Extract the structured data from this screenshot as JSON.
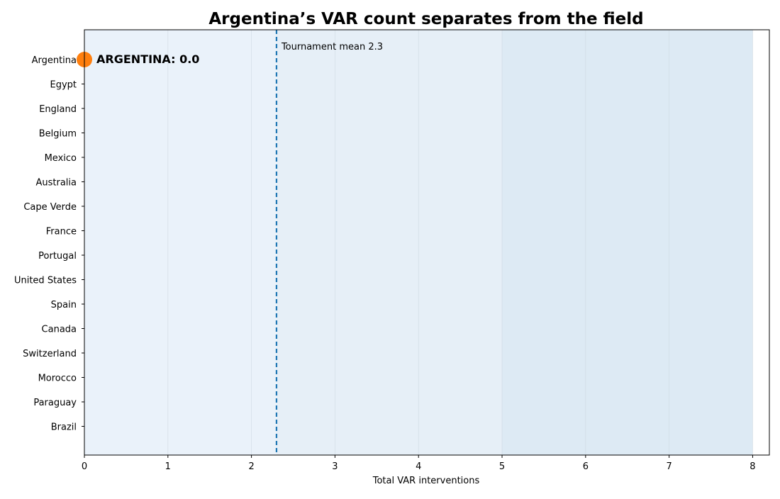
{
  "chart_data": {
    "type": "scatter",
    "title": "Argentina’s VAR count separates from the field",
    "xlabel": "Total VAR interventions",
    "ylabel": "",
    "xlim": [
      0,
      8.2
    ],
    "x_ticks": [
      "0",
      "1",
      "2",
      "3",
      "4",
      "5",
      "6",
      "7",
      "8"
    ],
    "grid": "vertical",
    "categories": [
      "Argentina",
      "Egypt",
      "England",
      "Belgium",
      "Mexico",
      "Australia",
      "Cape Verde",
      "France",
      "Portugal",
      "United States",
      "Spain",
      "Canada",
      "Switzerland",
      "Morocco",
      "Paraguay",
      "Brazil"
    ],
    "highlight": {
      "team": "Argentina",
      "value": 0.0,
      "label": "ARGENTINA: 0.0",
      "color": "#ff7f0e"
    },
    "mean_line": {
      "value": 2.3,
      "label": "Tournament mean 2.3",
      "color": "#1f77b4"
    },
    "bands": [
      {
        "from": 0,
        "to": 2.3,
        "color": "#eaf2fa"
      },
      {
        "from": 2.3,
        "to": 5,
        "color": "#e6eff7"
      },
      {
        "from": 5,
        "to": 8,
        "color": "#ddeaf4"
      }
    ]
  }
}
